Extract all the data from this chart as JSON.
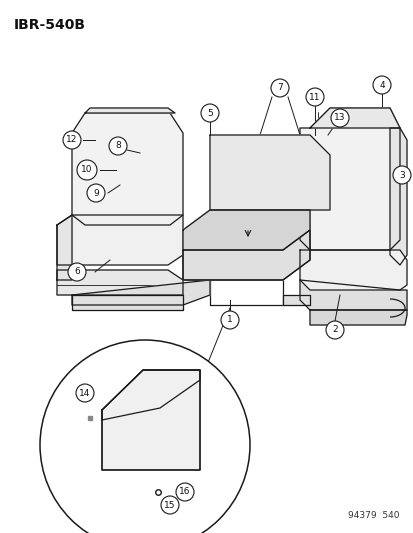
{
  "title": "IBR-540B",
  "footer": "94379  540",
  "bg_color": "#ffffff",
  "line_color": "#1a1a1a",
  "label_color": "#111111",
  "circle_edge": "#111111"
}
